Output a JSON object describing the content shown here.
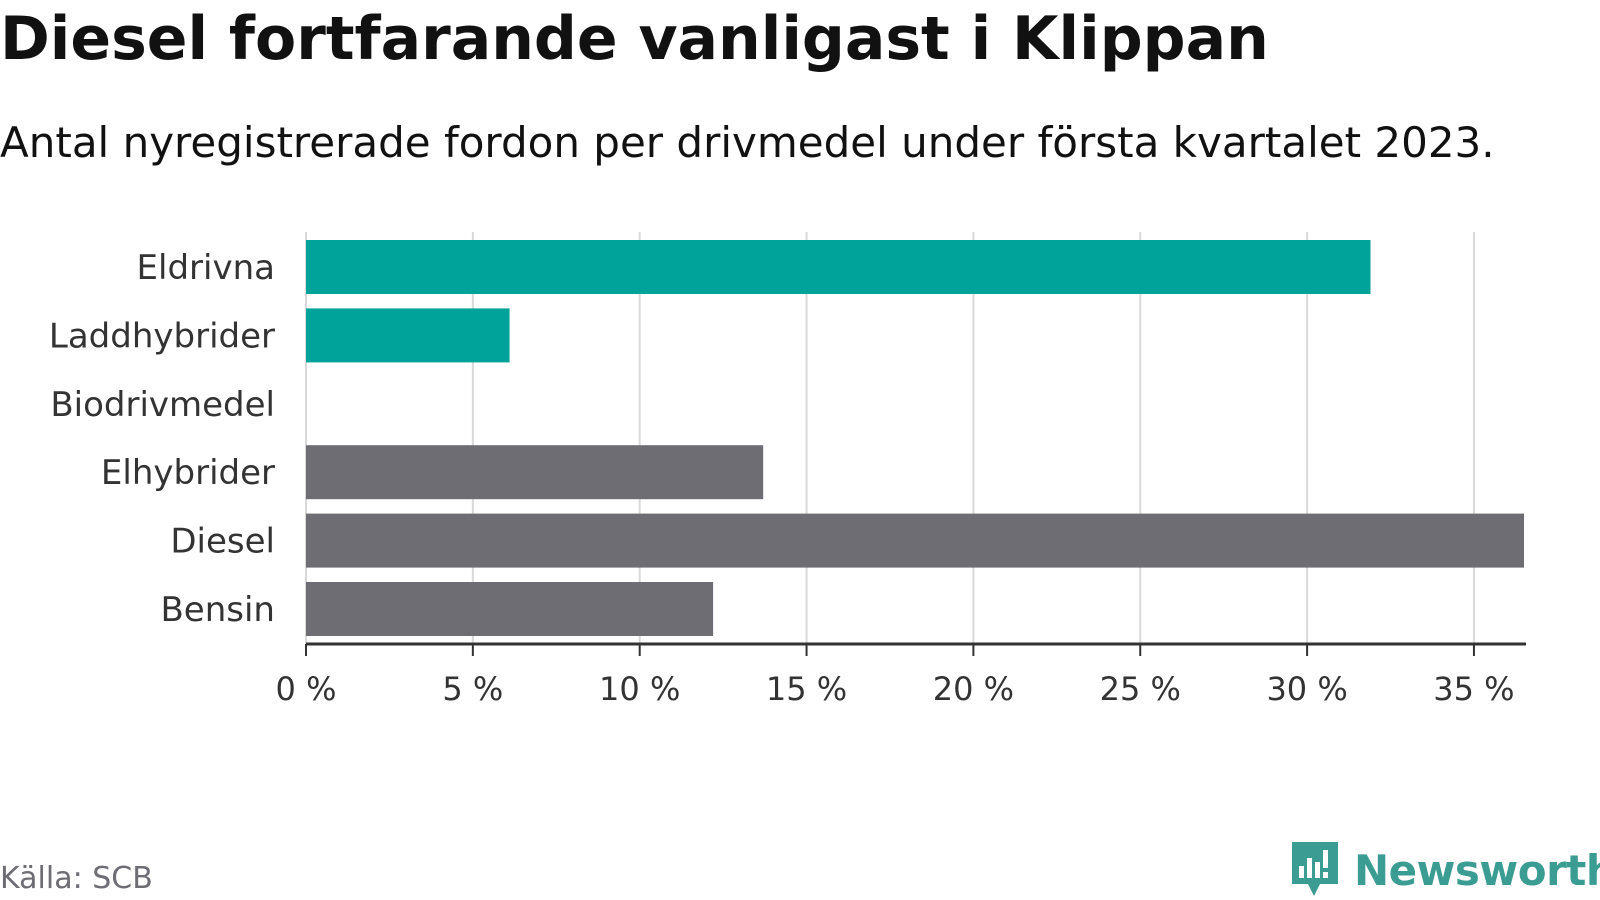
{
  "chart_data": {
    "type": "bar",
    "orientation": "horizontal",
    "title": "Diesel fortfarande vanligast i Klippan",
    "subtitle": "Antal nyregistrerade fordon per drivmedel under första kvartalet 2023.",
    "categories": [
      "Eldrivna",
      "Laddhybrider",
      "Biodrivmedel",
      "Elhybrider",
      "Diesel",
      "Bensin"
    ],
    "values": [
      31.9,
      6.1,
      0,
      13.7,
      36.5,
      12.2
    ],
    "colors": [
      "#00a39a",
      "#00a39a",
      "#00a39a",
      "#6e6d74",
      "#6e6d74",
      "#6e6d74"
    ],
    "xlim": [
      0,
      36.5
    ],
    "xticks": [
      0,
      5,
      10,
      15,
      20,
      25,
      30,
      35
    ],
    "xtick_labels": [
      "0 %",
      "5 %",
      "10 %",
      "15 %",
      "20 %",
      "25 %",
      "30 %",
      "35 %"
    ],
    "grid": true
  },
  "footer": {
    "source": "Källa: SCB",
    "brand": "Newsworthy",
    "brand_icon": "newsworthy-logo-icon",
    "brand_color": "#3a9c92"
  }
}
